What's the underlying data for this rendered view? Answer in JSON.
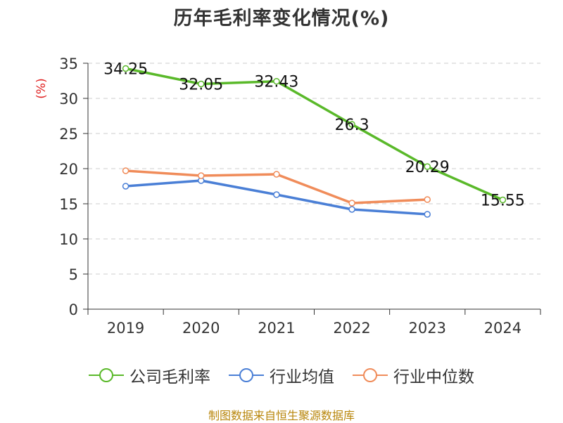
{
  "chart_data": {
    "type": "line",
    "title": "历年毛利率变化情况(%)",
    "ylabel": "(%)",
    "xlabel": "",
    "ylim": [
      0,
      35
    ],
    "yticks": [
      0,
      5,
      10,
      15,
      20,
      25,
      30,
      35
    ],
    "categories": [
      "2019",
      "2020",
      "2021",
      "2022",
      "2023",
      "2024"
    ],
    "grid": true,
    "legend_position": "bottom",
    "series": [
      {
        "name": "公司毛利率",
        "color": "#5ab92a",
        "show_labels": true,
        "values": [
          34.25,
          32.05,
          32.43,
          26.3,
          20.29,
          15.55
        ],
        "labels": [
          "34.25",
          "32.05",
          "32.43",
          "26.3",
          "20.29",
          "15.55"
        ]
      },
      {
        "name": "行业均值",
        "color": "#4a7fd6",
        "show_labels": false,
        "values": [
          17.5,
          18.3,
          16.3,
          14.2,
          13.5,
          null
        ]
      },
      {
        "name": "行业中位数",
        "color": "#f08c5a",
        "show_labels": false,
        "values": [
          19.7,
          19.0,
          19.2,
          15.1,
          15.6,
          null
        ]
      }
    ],
    "source": "制图数据来自恒生聚源数据库"
  }
}
